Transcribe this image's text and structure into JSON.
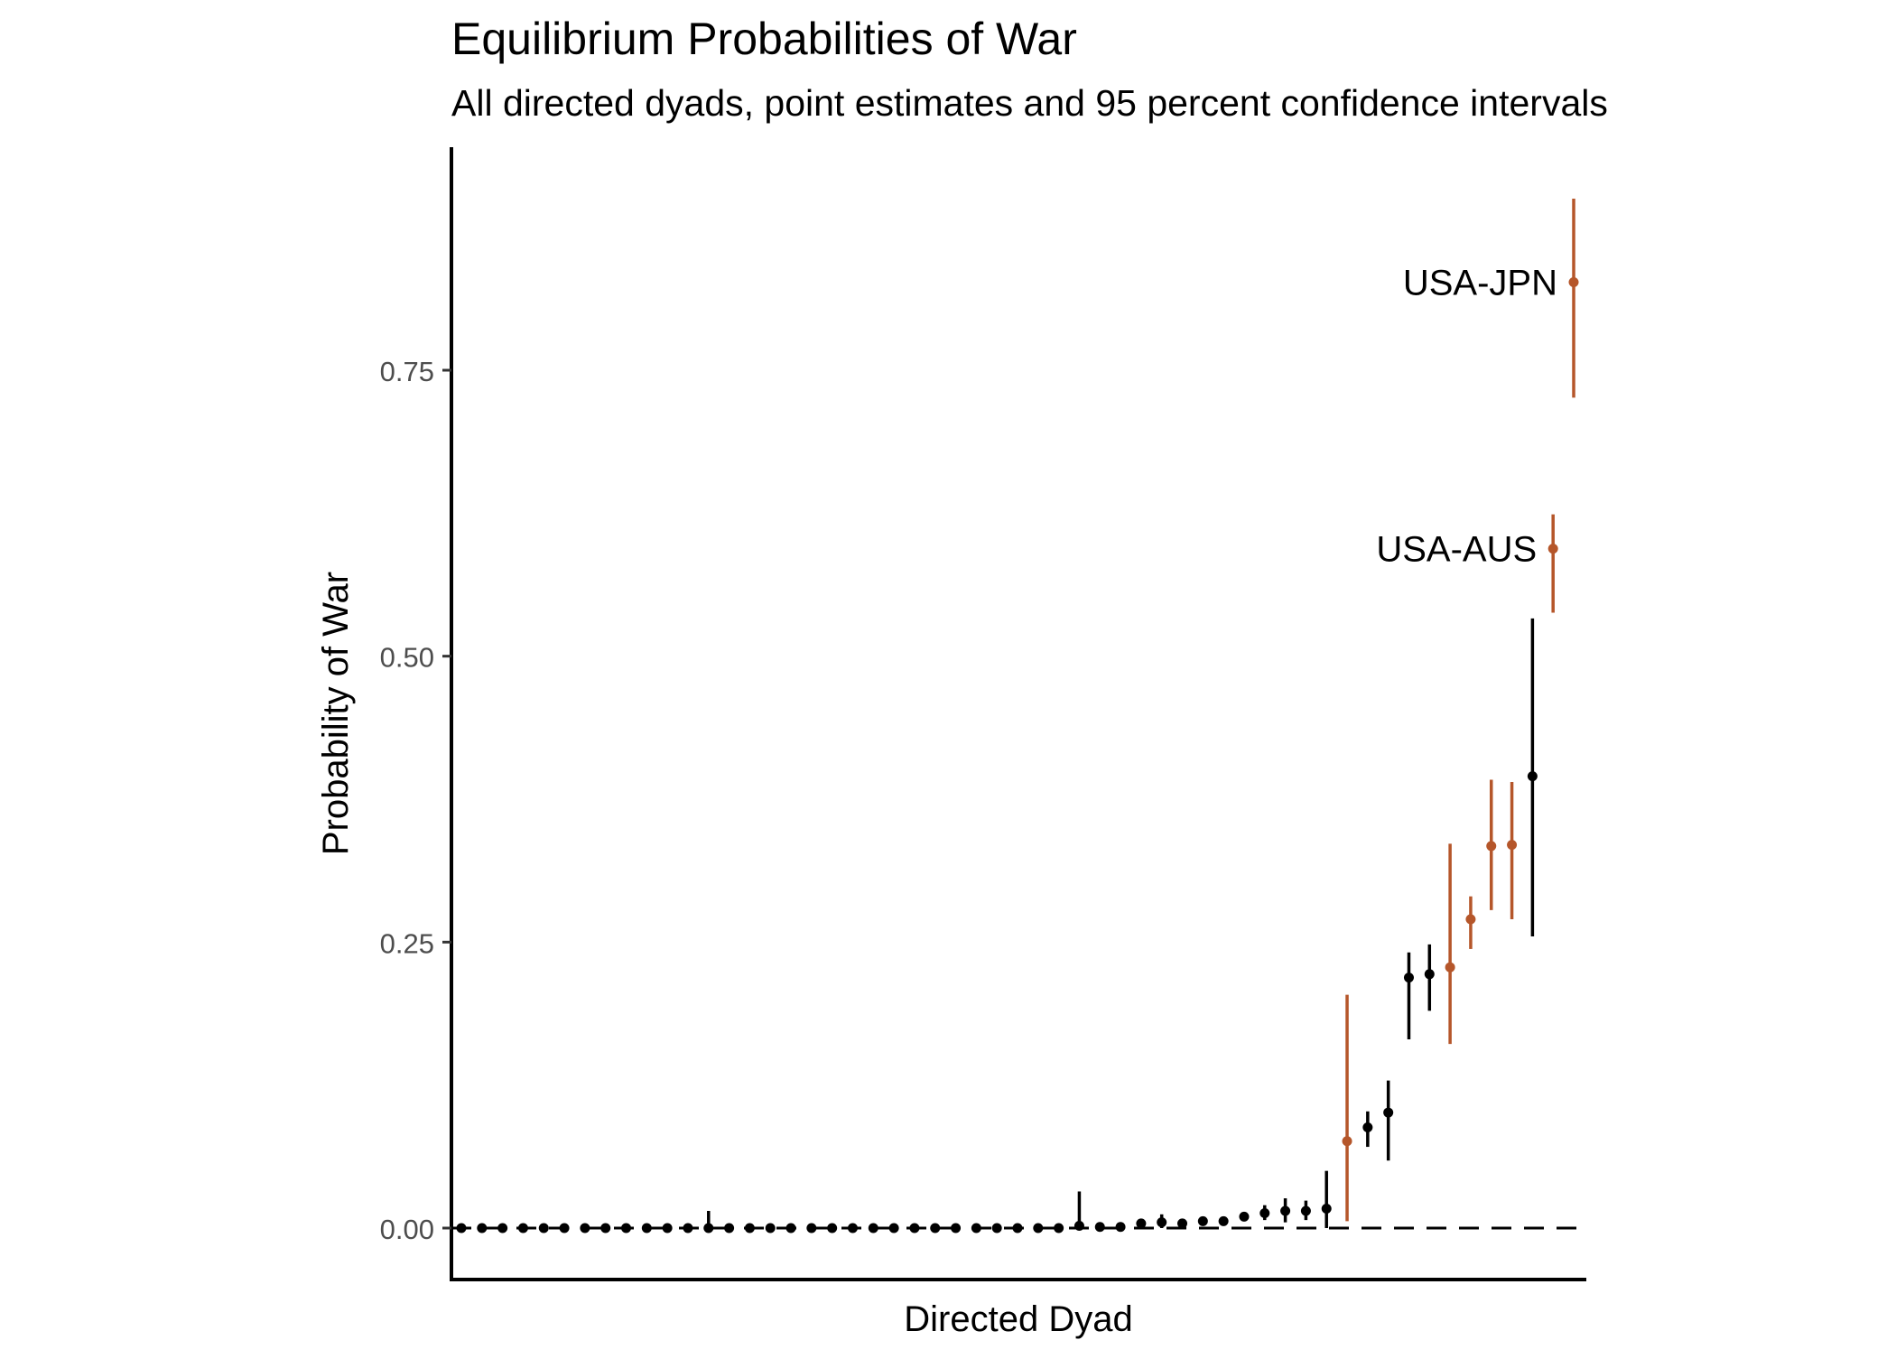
{
  "chart_data": {
    "type": "scatter",
    "title": "Equilibrium Probabilities of War",
    "subtitle": "All directed dyads, point estimates and 95 percent confidence intervals",
    "xlabel": "Directed Dyad",
    "ylabel": "Probability of War",
    "ylim": [
      -0.045,
      0.945
    ],
    "yticks": [
      {
        "value": 0.0,
        "label": "0.00"
      },
      {
        "value": 0.25,
        "label": "0.25"
      },
      {
        "value": 0.5,
        "label": "0.50"
      },
      {
        "value": 0.75,
        "label": "0.75"
      }
    ],
    "reference_line": {
      "y": 0,
      "style": "dashed"
    },
    "grid": false,
    "colors": {
      "default": "#000000",
      "highlight": "#b5562a"
    },
    "points": [
      {
        "x": 1,
        "y": 0.0,
        "lo": 0.0,
        "hi": 0.0,
        "highlight": false
      },
      {
        "x": 2,
        "y": 0.0,
        "lo": 0.0,
        "hi": 0.0,
        "highlight": false
      },
      {
        "x": 3,
        "y": 0.0,
        "lo": 0.0,
        "hi": 0.0,
        "highlight": false
      },
      {
        "x": 4,
        "y": 0.0,
        "lo": 0.0,
        "hi": 0.0,
        "highlight": false
      },
      {
        "x": 5,
        "y": 0.0,
        "lo": 0.0,
        "hi": 0.0,
        "highlight": false
      },
      {
        "x": 6,
        "y": 0.0,
        "lo": 0.0,
        "hi": 0.0,
        "highlight": false
      },
      {
        "x": 7,
        "y": 0.0,
        "lo": 0.0,
        "hi": 0.0,
        "highlight": false
      },
      {
        "x": 8,
        "y": 0.0,
        "lo": 0.0,
        "hi": 0.0,
        "highlight": false
      },
      {
        "x": 9,
        "y": 0.0,
        "lo": 0.0,
        "hi": 0.0,
        "highlight": false
      },
      {
        "x": 10,
        "y": 0.0,
        "lo": 0.0,
        "hi": 0.0,
        "highlight": false
      },
      {
        "x": 11,
        "y": 0.0,
        "lo": 0.0,
        "hi": 0.0,
        "highlight": false
      },
      {
        "x": 12,
        "y": 0.0,
        "lo": 0.0,
        "hi": 0.0,
        "highlight": false
      },
      {
        "x": 13,
        "y": 0.0,
        "lo": 0.0,
        "hi": 0.015,
        "highlight": false
      },
      {
        "x": 14,
        "y": 0.0,
        "lo": 0.0,
        "hi": 0.0,
        "highlight": false
      },
      {
        "x": 15,
        "y": 0.0,
        "lo": 0.0,
        "hi": 0.0,
        "highlight": false
      },
      {
        "x": 16,
        "y": 0.0,
        "lo": 0.0,
        "hi": 0.0,
        "highlight": false
      },
      {
        "x": 17,
        "y": 0.0,
        "lo": 0.0,
        "hi": 0.0,
        "highlight": false
      },
      {
        "x": 18,
        "y": 0.0,
        "lo": 0.0,
        "hi": 0.0,
        "highlight": false
      },
      {
        "x": 19,
        "y": 0.0,
        "lo": 0.0,
        "hi": 0.0,
        "highlight": false
      },
      {
        "x": 20,
        "y": 0.0,
        "lo": 0.0,
        "hi": 0.0,
        "highlight": false
      },
      {
        "x": 21,
        "y": 0.0,
        "lo": 0.0,
        "hi": 0.0,
        "highlight": false
      },
      {
        "x": 22,
        "y": 0.0,
        "lo": 0.0,
        "hi": 0.0,
        "highlight": false
      },
      {
        "x": 23,
        "y": 0.0,
        "lo": 0.0,
        "hi": 0.0,
        "highlight": false
      },
      {
        "x": 24,
        "y": 0.0,
        "lo": 0.0,
        "hi": 0.0,
        "highlight": false
      },
      {
        "x": 25,
        "y": 0.0,
        "lo": 0.0,
        "hi": 0.0,
        "highlight": false
      },
      {
        "x": 26,
        "y": 0.0,
        "lo": 0.0,
        "hi": 0.0,
        "highlight": false
      },
      {
        "x": 27,
        "y": 0.0,
        "lo": 0.0,
        "hi": 0.0,
        "highlight": false
      },
      {
        "x": 28,
        "y": 0.0,
        "lo": 0.0,
        "hi": 0.0,
        "highlight": false
      },
      {
        "x": 29,
        "y": 0.0,
        "lo": 0.0,
        "hi": 0.0,
        "highlight": false
      },
      {
        "x": 30,
        "y": 0.0,
        "lo": 0.0,
        "hi": 0.0,
        "highlight": false
      },
      {
        "x": 31,
        "y": 0.002,
        "lo": 0.0,
        "hi": 0.032,
        "highlight": false
      },
      {
        "x": 32,
        "y": 0.001,
        "lo": 0.0,
        "hi": 0.002,
        "highlight": false
      },
      {
        "x": 33,
        "y": 0.001,
        "lo": 0.0,
        "hi": 0.002,
        "highlight": false
      },
      {
        "x": 34,
        "y": 0.004,
        "lo": 0.002,
        "hi": 0.006,
        "highlight": false
      },
      {
        "x": 35,
        "y": 0.005,
        "lo": 0.0,
        "hi": 0.012,
        "highlight": false
      },
      {
        "x": 36,
        "y": 0.004,
        "lo": 0.002,
        "hi": 0.006,
        "highlight": false
      },
      {
        "x": 37,
        "y": 0.006,
        "lo": 0.004,
        "hi": 0.008,
        "highlight": false
      },
      {
        "x": 38,
        "y": 0.006,
        "lo": 0.003,
        "hi": 0.01,
        "highlight": false
      },
      {
        "x": 39,
        "y": 0.01,
        "lo": 0.007,
        "hi": 0.013,
        "highlight": false
      },
      {
        "x": 40,
        "y": 0.013,
        "lo": 0.007,
        "hi": 0.02,
        "highlight": false
      },
      {
        "x": 41,
        "y": 0.015,
        "lo": 0.005,
        "hi": 0.026,
        "highlight": false
      },
      {
        "x": 42,
        "y": 0.015,
        "lo": 0.007,
        "hi": 0.024,
        "highlight": false
      },
      {
        "x": 43,
        "y": 0.017,
        "lo": 0.0,
        "hi": 0.05,
        "highlight": false
      },
      {
        "x": 44,
        "y": 0.076,
        "lo": 0.006,
        "hi": 0.204,
        "highlight": true
      },
      {
        "x": 45,
        "y": 0.088,
        "lo": 0.071,
        "hi": 0.102,
        "highlight": false
      },
      {
        "x": 46,
        "y": 0.101,
        "lo": 0.059,
        "hi": 0.129,
        "highlight": false
      },
      {
        "x": 47,
        "y": 0.219,
        "lo": 0.165,
        "hi": 0.241,
        "highlight": false
      },
      {
        "x": 48,
        "y": 0.222,
        "lo": 0.19,
        "hi": 0.248,
        "highlight": false
      },
      {
        "x": 49,
        "y": 0.228,
        "lo": 0.161,
        "hi": 0.336,
        "highlight": true
      },
      {
        "x": 50,
        "y": 0.27,
        "lo": 0.244,
        "hi": 0.29,
        "highlight": true
      },
      {
        "x": 51,
        "y": 0.334,
        "lo": 0.278,
        "hi": 0.392,
        "highlight": true
      },
      {
        "x": 52,
        "y": 0.335,
        "lo": 0.27,
        "hi": 0.39,
        "highlight": true
      },
      {
        "x": 53,
        "y": 0.395,
        "lo": 0.255,
        "hi": 0.533,
        "highlight": false
      },
      {
        "x": 54,
        "y": 0.594,
        "lo": 0.538,
        "hi": 0.624,
        "highlight": true
      },
      {
        "x": 55,
        "y": 0.827,
        "lo": 0.726,
        "hi": 0.9,
        "highlight": true
      }
    ],
    "annotations": [
      {
        "x": 54,
        "text": "USA-AUS"
      },
      {
        "x": 55,
        "text": "USA-JPN"
      }
    ]
  }
}
